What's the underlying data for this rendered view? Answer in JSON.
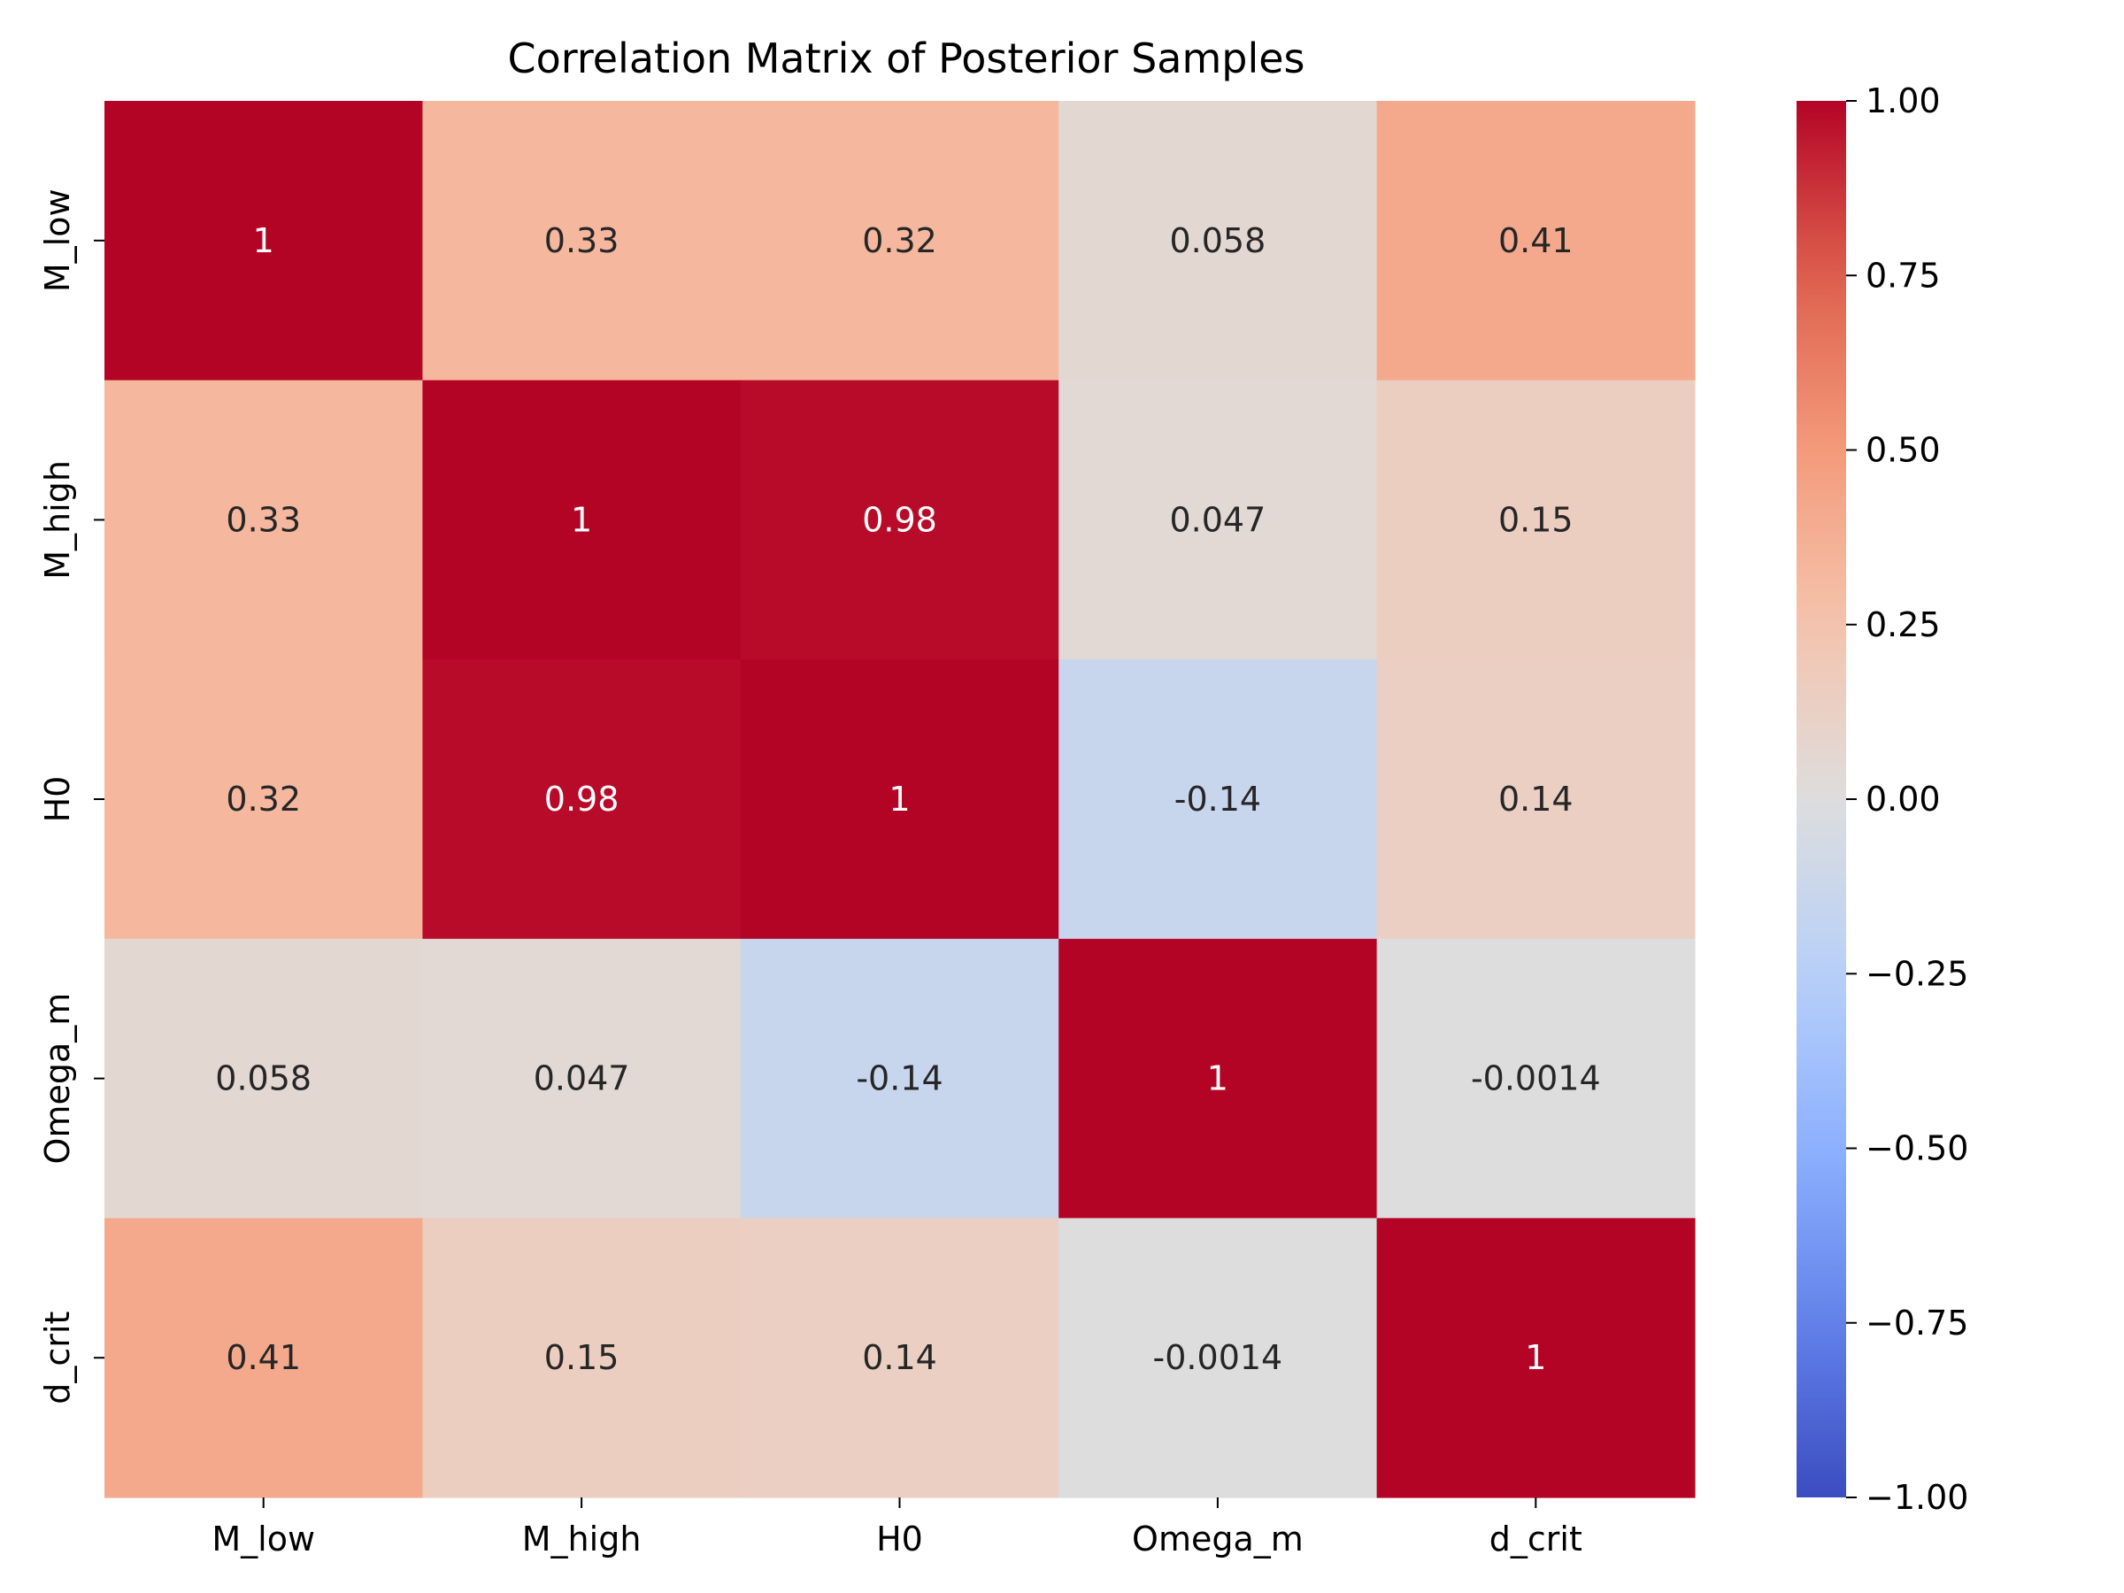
{
  "chart_data": {
    "type": "heatmap",
    "title": "Correlation Matrix of Posterior Samples",
    "xlabel": "",
    "ylabel": "",
    "x_categories": [
      "M_low",
      "M_high",
      "H0",
      "Omega_m",
      "d_crit"
    ],
    "y_categories": [
      "M_low",
      "M_high",
      "H0",
      "Omega_m",
      "d_crit"
    ],
    "values": [
      [
        1,
        0.33,
        0.32,
        0.058,
        0.41
      ],
      [
        0.33,
        1,
        0.98,
        0.047,
        0.15
      ],
      [
        0.32,
        0.98,
        1,
        -0.14,
        0.14
      ],
      [
        0.058,
        0.047,
        -0.14,
        1,
        -0.0014
      ],
      [
        0.41,
        0.15,
        0.14,
        -0.0014,
        1
      ]
    ],
    "annotations": [
      [
        "1",
        "0.33",
        "0.32",
        "0.058",
        "0.41"
      ],
      [
        "0.33",
        "1",
        "0.98",
        "0.047",
        "0.15"
      ],
      [
        "0.32",
        "0.98",
        "1",
        "-0.14",
        "0.14"
      ],
      [
        "0.058",
        "0.047",
        "-0.14",
        "1",
        "-0.0014"
      ],
      [
        "0.41",
        "0.15",
        "0.14",
        "-0.0014",
        "1"
      ]
    ],
    "colormap": "coolwarm",
    "vmin": -1,
    "vmax": 1,
    "colorbar_ticks": [
      1.0,
      0.75,
      0.5,
      0.25,
      0.0,
      -0.25,
      -0.5,
      -0.75,
      -1.0
    ],
    "colorbar_tick_labels": [
      "1.00",
      "0.75",
      "0.50",
      "0.25",
      "0.00",
      "−0.25",
      "−0.50",
      "−0.75",
      "−1.00"
    ],
    "annotation_colors": {
      "dark_background": "#ffffff",
      "light_background": "#262626"
    },
    "grid": false,
    "legend": "colorbar-right"
  }
}
